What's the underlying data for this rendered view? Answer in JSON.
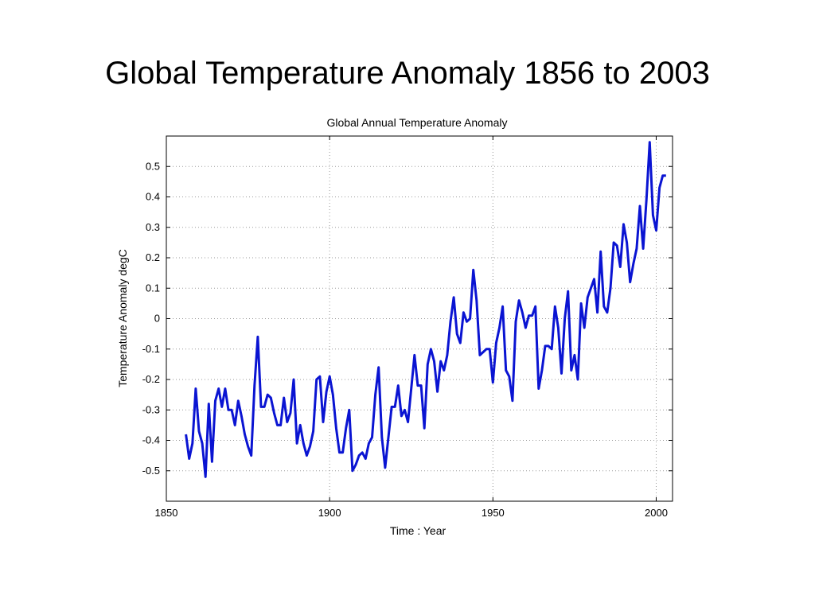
{
  "slide": {
    "title": "Global Temperature Anomaly 1856 to 2003"
  },
  "chart_data": {
    "type": "line",
    "title": "Global Annual Temperature Anomaly",
    "xlabel": "Time : Year",
    "ylabel": "Temperature Anomaly degC",
    "xlim": [
      1850,
      2005
    ],
    "ylim": [
      -0.6,
      0.6
    ],
    "xticks": [
      1850,
      1900,
      1950,
      2000
    ],
    "yticks": [
      -0.5,
      -0.4,
      -0.3,
      -0.2,
      -0.1,
      0,
      0.1,
      0.2,
      0.3,
      0.4,
      0.5
    ],
    "ytick_labels": [
      "-0.5",
      "-0.4",
      "-0.3",
      "-0.2",
      "-0.1",
      "0",
      "0.1",
      "0.2",
      "0.3",
      "0.4",
      "0.5"
    ],
    "xtick_labels": [
      "1850",
      "1900",
      "1950",
      "2000"
    ],
    "grid": true,
    "line_color": "#0a14d2",
    "series": [
      {
        "x": [
          1856,
          1857,
          1858,
          1859,
          1860,
          1861,
          1862,
          1863,
          1864,
          1865,
          1866,
          1867,
          1868,
          1869,
          1870,
          1871,
          1872,
          1873,
          1874,
          1875,
          1876,
          1877,
          1878,
          1879,
          1880,
          1881,
          1882,
          1883,
          1884,
          1885,
          1886,
          1887,
          1888,
          1889,
          1890,
          1891,
          1892,
          1893,
          1894,
          1895,
          1896,
          1897,
          1898,
          1899,
          1900,
          1901,
          1902,
          1903,
          1904,
          1905,
          1906,
          1907,
          1908,
          1909,
          1910,
          1911,
          1912,
          1913,
          1914,
          1915,
          1916,
          1917,
          1918,
          1919,
          1920,
          1921,
          1922,
          1923,
          1924,
          1925,
          1926,
          1927,
          1928,
          1929,
          1930,
          1931,
          1932,
          1933,
          1934,
          1935,
          1936,
          1937,
          1938,
          1939,
          1940,
          1941,
          1942,
          1943,
          1944,
          1945,
          1946,
          1947,
          1948,
          1949,
          1950,
          1951,
          1952,
          1953,
          1954,
          1955,
          1956,
          1957,
          1958,
          1959,
          1960,
          1961,
          1962,
          1963,
          1964,
          1965,
          1966,
          1967,
          1968,
          1969,
          1970,
          1971,
          1972,
          1973,
          1974,
          1975,
          1976,
          1977,
          1978,
          1979,
          1980,
          1981,
          1982,
          1983,
          1984,
          1985,
          1986,
          1987,
          1988,
          1989,
          1990,
          1991,
          1992,
          1993,
          1994,
          1995,
          1996,
          1997,
          1998,
          1999,
          2000,
          2001,
          2002,
          2003
        ],
        "values": [
          -0.38,
          -0.46,
          -0.41,
          -0.23,
          -0.37,
          -0.41,
          -0.52,
          -0.28,
          -0.47,
          -0.27,
          -0.23,
          -0.29,
          -0.23,
          -0.3,
          -0.3,
          -0.35,
          -0.27,
          -0.32,
          -0.38,
          -0.42,
          -0.45,
          -0.22,
          -0.06,
          -0.29,
          -0.29,
          -0.25,
          -0.26,
          -0.31,
          -0.35,
          -0.35,
          -0.26,
          -0.34,
          -0.31,
          -0.2,
          -0.41,
          -0.35,
          -0.41,
          -0.45,
          -0.42,
          -0.37,
          -0.2,
          -0.19,
          -0.34,
          -0.24,
          -0.19,
          -0.25,
          -0.36,
          -0.44,
          -0.44,
          -0.36,
          -0.3,
          -0.5,
          -0.48,
          -0.45,
          -0.44,
          -0.46,
          -0.41,
          -0.39,
          -0.25,
          -0.16,
          -0.39,
          -0.49,
          -0.39,
          -0.29,
          -0.29,
          -0.22,
          -0.32,
          -0.3,
          -0.34,
          -0.23,
          -0.12,
          -0.22,
          -0.22,
          -0.36,
          -0.15,
          -0.1,
          -0.14,
          -0.24,
          -0.14,
          -0.17,
          -0.12,
          -0.01,
          0.07,
          -0.05,
          -0.08,
          0.02,
          -0.01,
          0.0,
          0.16,
          0.06,
          -0.12,
          -0.11,
          -0.1,
          -0.1,
          -0.21,
          -0.08,
          -0.03,
          0.04,
          -0.17,
          -0.19,
          -0.27,
          -0.01,
          0.06,
          0.02,
          -0.03,
          0.01,
          0.01,
          0.04,
          -0.23,
          -0.17,
          -0.09,
          -0.09,
          -0.1,
          0.04,
          -0.03,
          -0.18,
          0.0,
          0.09,
          -0.17,
          -0.12,
          -0.2,
          0.05,
          -0.03,
          0.07,
          0.1,
          0.13,
          0.02,
          0.22,
          0.04,
          0.02,
          0.1,
          0.25,
          0.24,
          0.17,
          0.31,
          0.25,
          0.12,
          0.18,
          0.23,
          0.37,
          0.23,
          0.39,
          0.58,
          0.34,
          0.29,
          0.43,
          0.47,
          0.47
        ]
      }
    ]
  }
}
